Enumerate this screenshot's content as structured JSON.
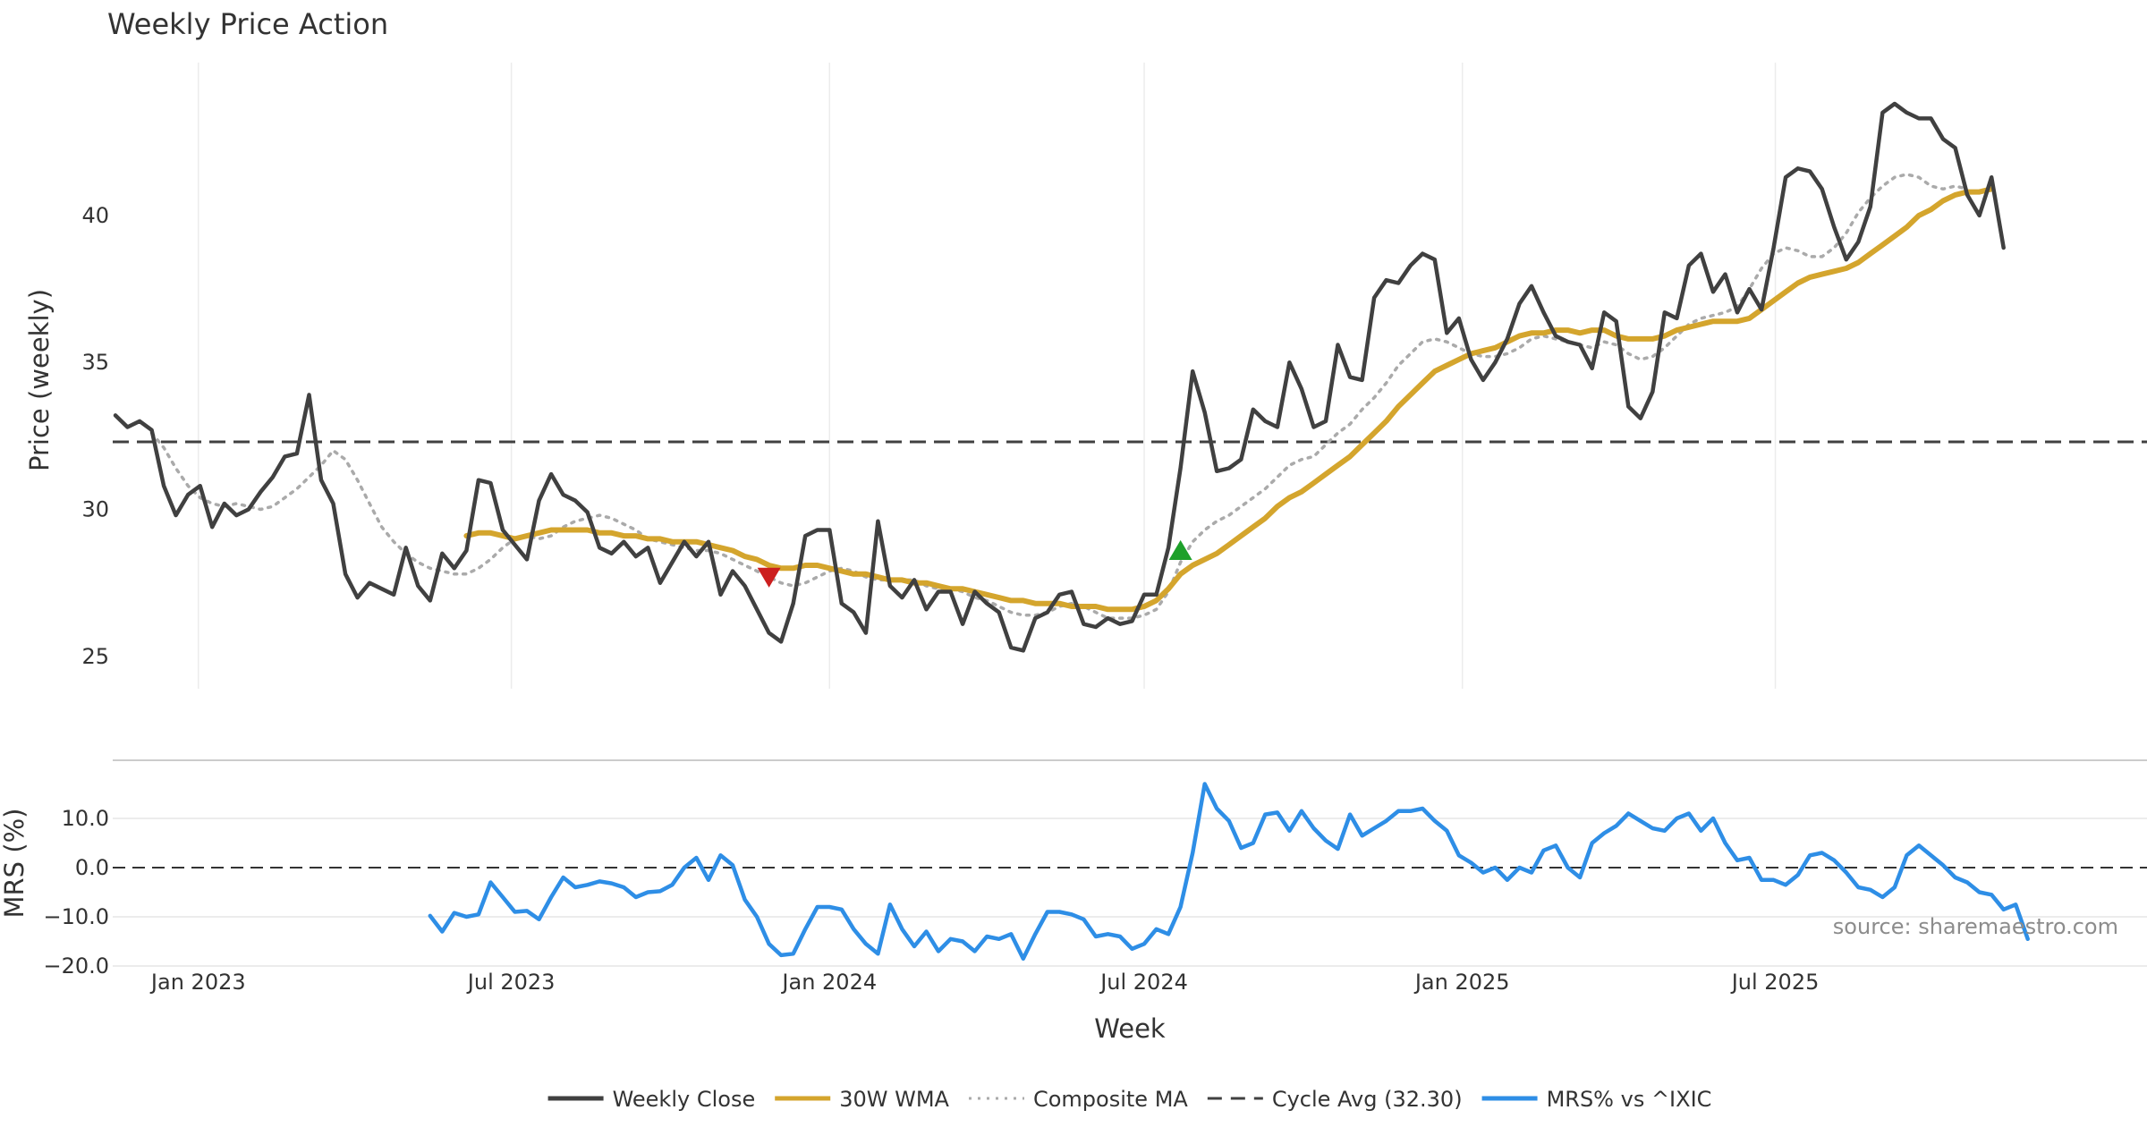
{
  "chart_data": {
    "title": "Weekly Price Action",
    "type": "line",
    "source_text": "source: sharemaestro.com",
    "x_axis": {
      "label": "Week",
      "start_date": "2022-11-14",
      "end_date": "2025-10-27",
      "ticks": [
        {
          "label": "Jan 2023",
          "date": "2023-01-01"
        },
        {
          "label": "Jul 2023",
          "date": "2023-07-01"
        },
        {
          "label": "Jan 2024",
          "date": "2024-01-01"
        },
        {
          "label": "Jul 2024",
          "date": "2024-07-01"
        },
        {
          "label": "Jan 2025",
          "date": "2025-01-01"
        },
        {
          "label": "Jul 2025",
          "date": "2025-07-01"
        }
      ]
    },
    "price_panel": {
      "ylabel": "Price (weekly)",
      "ylim": [
        23.9,
        45.2
      ],
      "yticks": [
        25,
        30,
        35,
        40
      ],
      "cycle_avg": 32.3
    },
    "mrs_panel": {
      "ylabel": "MRS (%)",
      "ylim": [
        -20.0,
        20.0
      ],
      "yticks": [
        {
          "v": 10,
          "label": "10.0"
        },
        {
          "v": 0,
          "label": "0.0"
        },
        {
          "v": -10,
          "label": "−10.0"
        },
        {
          "v": -20,
          "label": "−20.0"
        }
      ]
    },
    "series": [
      {
        "key": "close",
        "name": "Weekly Close",
        "color": "#404040",
        "style": "solid",
        "start_index": 0,
        "values": [
          33.2,
          32.8,
          33.0,
          32.7,
          30.8,
          29.8,
          30.5,
          30.8,
          29.4,
          30.2,
          29.8,
          30.0,
          30.6,
          31.1,
          31.8,
          31.9,
          33.9,
          31.0,
          30.2,
          27.8,
          27.0,
          27.5,
          27.3,
          27.1,
          28.7,
          27.4,
          26.9,
          28.5,
          28.0,
          28.6,
          31.0,
          30.9,
          29.3,
          28.8,
          28.3,
          30.3,
          31.2,
          30.5,
          30.3,
          29.9,
          28.7,
          28.5,
          28.9,
          28.4,
          28.7,
          27.5,
          28.2,
          28.9,
          28.4,
          28.9,
          27.1,
          27.9,
          27.4,
          26.6,
          25.8,
          25.5,
          26.8,
          29.1,
          29.3,
          29.3,
          26.8,
          26.5,
          25.8,
          29.6,
          27.4,
          27.0,
          27.6,
          26.6,
          27.2,
          27.2,
          26.1,
          27.2,
          26.8,
          26.5,
          25.3,
          25.2,
          26.3,
          26.5,
          27.1,
          27.2,
          26.1,
          26.0,
          26.3,
          26.1,
          26.2,
          27.1,
          27.1,
          28.7,
          31.4,
          34.7,
          33.3,
          31.3,
          31.4,
          31.7,
          33.4,
          33.0,
          32.8,
          35.0,
          34.1,
          32.8,
          33.0,
          35.6,
          34.5,
          34.4,
          37.2,
          37.8,
          37.7,
          38.3,
          38.7,
          38.5,
          36.0,
          36.5,
          35.1,
          34.4,
          35.0,
          35.8,
          37.0,
          37.6,
          36.7,
          35.9,
          35.7,
          35.6,
          34.8,
          36.7,
          36.4,
          33.5,
          33.1,
          34.0,
          36.7,
          36.5,
          38.3,
          38.7,
          37.4,
          38.0,
          36.7,
          37.5,
          36.8,
          38.9,
          41.3,
          41.6,
          41.5,
          40.9,
          39.6,
          38.5,
          39.1,
          40.3,
          43.5,
          43.8,
          43.5,
          43.3,
          43.3,
          42.6,
          42.3,
          40.7,
          40.0,
          41.3,
          38.9
        ]
      },
      {
        "key": "wma",
        "name": "30W WMA",
        "color": "#d4a52d",
        "style": "solid",
        "start_index": 29,
        "values": [
          29.1,
          29.2,
          29.2,
          29.1,
          29.0,
          29.1,
          29.2,
          29.3,
          29.3,
          29.3,
          29.3,
          29.2,
          29.2,
          29.1,
          29.1,
          29.0,
          29.0,
          28.9,
          28.9,
          28.9,
          28.8,
          28.7,
          28.6,
          28.4,
          28.3,
          28.1,
          28.0,
          28.0,
          28.1,
          28.1,
          28.0,
          27.9,
          27.8,
          27.8,
          27.7,
          27.6,
          27.6,
          27.5,
          27.5,
          27.4,
          27.3,
          27.3,
          27.2,
          27.1,
          27.0,
          26.9,
          26.9,
          26.8,
          26.8,
          26.8,
          26.7,
          26.7,
          26.7,
          26.6,
          26.6,
          26.6,
          26.7,
          26.9,
          27.3,
          27.8,
          28.1,
          28.3,
          28.5,
          28.8,
          29.1,
          29.4,
          29.7,
          30.1,
          30.4,
          30.6,
          30.9,
          31.2,
          31.5,
          31.8,
          32.2,
          32.6,
          33.0,
          33.5,
          33.9,
          34.3,
          34.7,
          34.9,
          35.1,
          35.3,
          35.4,
          35.5,
          35.7,
          35.9,
          36.0,
          36.0,
          36.1,
          36.1,
          36.0,
          36.1,
          36.1,
          35.9,
          35.8,
          35.8,
          35.8,
          35.9,
          36.1,
          36.2,
          36.3,
          36.4,
          36.4,
          36.4,
          36.5,
          36.8,
          37.1,
          37.4,
          37.7,
          37.9,
          38.0,
          38.1,
          38.2,
          38.4,
          38.7,
          39.0,
          39.3,
          39.6,
          40.0,
          40.2,
          40.5,
          40.7,
          40.8,
          40.8,
          40.9
        ]
      },
      {
        "key": "comp",
        "name": "Composite MA",
        "color": "#aaaaaa",
        "style": "dotted",
        "start_index": 3,
        "values": [
          32.6,
          32.1,
          31.4,
          30.8,
          30.4,
          30.2,
          30.1,
          30.2,
          30.1,
          30.0,
          30.1,
          30.4,
          30.7,
          31.1,
          31.5,
          32.0,
          31.7,
          31.0,
          30.2,
          29.4,
          28.9,
          28.5,
          28.2,
          28.0,
          27.9,
          27.8,
          27.8,
          28.0,
          28.3,
          28.7,
          29.0,
          29.1,
          29.0,
          29.1,
          29.4,
          29.6,
          29.7,
          29.8,
          29.7,
          29.5,
          29.3,
          29.0,
          28.9,
          28.8,
          28.7,
          28.6,
          28.6,
          28.5,
          28.3,
          28.1,
          27.9,
          27.7,
          27.5,
          27.4,
          27.5,
          27.7,
          27.9,
          28.0,
          27.9,
          27.7,
          27.6,
          27.6,
          27.6,
          27.6,
          27.4,
          27.3,
          27.3,
          27.2,
          27.0,
          26.9,
          26.7,
          26.5,
          26.4,
          26.4,
          26.5,
          26.7,
          26.8,
          26.7,
          26.5,
          26.3,
          26.3,
          26.3,
          26.4,
          26.6,
          27.2,
          28.2,
          28.9,
          29.3,
          29.6,
          29.8,
          30.1,
          30.4,
          30.7,
          31.1,
          31.5,
          31.7,
          31.8,
          32.2,
          32.6,
          32.9,
          33.4,
          33.8,
          34.3,
          34.9,
          35.3,
          35.7,
          35.8,
          35.7,
          35.5,
          35.3,
          35.2,
          35.2,
          35.3,
          35.5,
          35.8,
          35.9,
          35.8,
          35.7,
          35.6,
          35.5,
          35.7,
          35.6,
          35.3,
          35.1,
          35.2,
          35.5,
          35.9,
          36.3,
          36.5,
          36.6,
          36.7,
          36.9,
          37.5,
          38.2,
          38.7,
          38.9,
          38.8,
          38.6,
          38.6,
          38.9,
          39.4,
          40.1,
          40.6,
          41.0,
          41.3,
          41.4,
          41.3,
          41.0,
          40.9,
          41.0,
          40.9
        ]
      },
      {
        "key": "mrs",
        "name": "MRS% vs ^IXIC",
        "color": "#2e8ee6",
        "style": "solid",
        "start_index": 26,
        "panel": "mrs",
        "values": [
          -9.8,
          -13.0,
          -9.2,
          -10.0,
          -9.5,
          -3.0,
          -6.0,
          -9.0,
          -8.8,
          -10.5,
          -6.0,
          -2.0,
          -4.0,
          -3.5,
          -2.8,
          -3.2,
          -4.0,
          -6.0,
          -5.0,
          -4.8,
          -3.5,
          0.0,
          2.0,
          -2.5,
          2.5,
          0.5,
          -6.5,
          -10.0,
          -15.5,
          -17.8,
          -17.5,
          -12.5,
          -8.0,
          -8.0,
          -8.5,
          -12.5,
          -15.5,
          -17.5,
          -7.5,
          -12.5,
          -16.0,
          -13.0,
          -17.0,
          -14.5,
          -15.0,
          -17.0,
          -14.0,
          -14.5,
          -13.5,
          -18.5,
          -13.5,
          -9.0,
          -9.0,
          -9.5,
          -10.5,
          -14.0,
          -13.5,
          -14.0,
          -16.5,
          -15.5,
          -12.5,
          -13.5,
          -8.0,
          3.0,
          17.0,
          12.0,
          9.5,
          4.0,
          5.0,
          10.8,
          11.2,
          7.5,
          11.5,
          8.0,
          5.5,
          3.8,
          10.8,
          6.5,
          8.0,
          9.5,
          11.5,
          11.5,
          12.0,
          9.5,
          7.5,
          2.5,
          1.0,
          -1.0,
          0.0,
          -2.5,
          0.0,
          -1.0,
          3.5,
          4.5,
          0.0,
          -2.0,
          5.0,
          7.0,
          8.5,
          11.0,
          9.5,
          8.0,
          7.5,
          10.0,
          11.0,
          7.5,
          10.0,
          5.0,
          1.5,
          2.0,
          -2.5,
          -2.5,
          -3.5,
          -1.5,
          2.5,
          3.0,
          1.5,
          -1.0,
          -4.0,
          -4.5,
          -6.0,
          -4.0,
          2.5,
          4.5,
          2.5,
          0.5,
          -2.0,
          -3.0,
          -5.0,
          -5.5,
          -8.5,
          -7.5,
          -14.5
        ]
      }
    ],
    "markers": [
      {
        "name": "sell-marker",
        "direction": "down",
        "week_index": 54,
        "value": 27.7,
        "color": "#cc1f1f"
      },
      {
        "name": "buy-marker",
        "direction": "up",
        "week_index": 88,
        "value": 28.6,
        "color": "#1ea02a"
      }
    ],
    "legend": [
      {
        "label": "Weekly Close",
        "color": "#404040",
        "style": "solid"
      },
      {
        "label": "30W WMA",
        "color": "#d4a52d",
        "style": "solid"
      },
      {
        "label": "Composite MA",
        "color": "#aaaaaa",
        "style": "dotted"
      },
      {
        "label": "Cycle Avg (32.30)",
        "color": "#404040",
        "style": "dashed"
      },
      {
        "label": "MRS% vs ^IXIC",
        "color": "#2e8ee6",
        "style": "solid"
      }
    ]
  }
}
